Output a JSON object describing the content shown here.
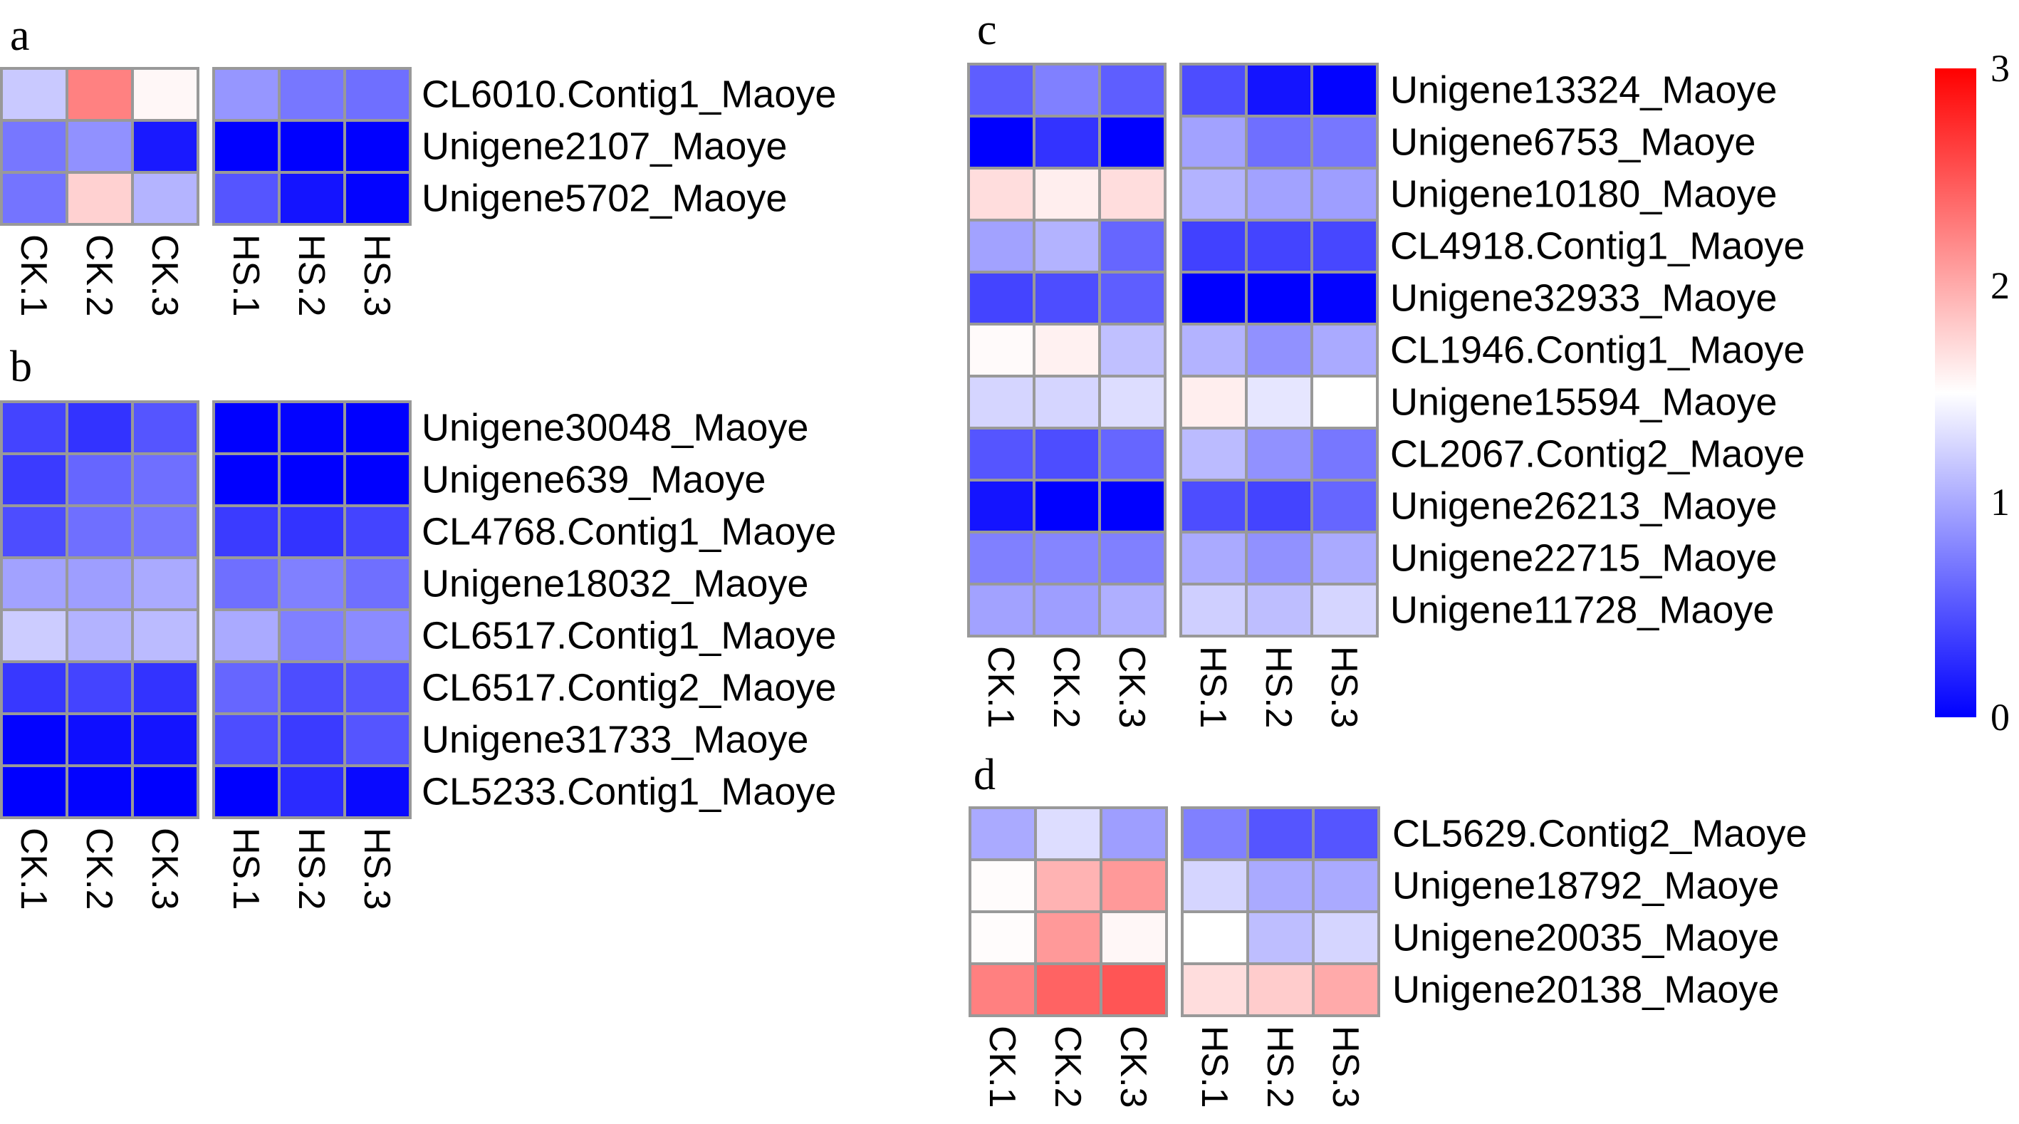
{
  "chart_data": [
    {
      "type": "heatmap",
      "panel": "a",
      "columns": [
        "CK.1",
        "CK.2",
        "CK.3",
        "HS.1",
        "HS.2",
        "HS.3"
      ],
      "rows": [
        "CL6010.Contig1_Maoye",
        "Unigene2107_Maoye",
        "Unigene5702_Maoye"
      ],
      "values": [
        [
          1.18,
          2.24,
          1.55,
          0.88,
          0.7,
          0.65
        ],
        [
          0.7,
          0.85,
          0.15,
          0.0,
          0.0,
          0.0
        ],
        [
          0.68,
          1.77,
          1.06,
          0.5,
          0.12,
          0.02
        ]
      ]
    },
    {
      "type": "heatmap",
      "panel": "b",
      "columns": [
        "CK.1",
        "CK.2",
        "CK.3",
        "HS.1",
        "HS.2",
        "HS.3"
      ],
      "rows": [
        "Unigene30048_Maoye",
        "Unigene639_Maoye",
        "CL4768.Contig1_Maoye",
        "Unigene18032_Maoye",
        "CL6517.Contig1_Maoye",
        "CL6517.Contig2_Maoye",
        "Unigene31733_Maoye",
        "CL5233.Contig1_Maoye"
      ],
      "values": [
        [
          0.4,
          0.3,
          0.5,
          0.0,
          0.02,
          0.0
        ],
        [
          0.35,
          0.6,
          0.65,
          0.0,
          0.0,
          0.0
        ],
        [
          0.45,
          0.65,
          0.7,
          0.35,
          0.3,
          0.4
        ],
        [
          0.95,
          0.93,
          1.0,
          0.65,
          0.75,
          0.65
        ],
        [
          1.2,
          1.05,
          1.1,
          1.0,
          0.75,
          0.82
        ],
        [
          0.33,
          0.4,
          0.3,
          0.6,
          0.45,
          0.5
        ],
        [
          0.02,
          0.08,
          0.12,
          0.45,
          0.35,
          0.5
        ],
        [
          0.0,
          0.02,
          0.0,
          0.0,
          0.25,
          0.05
        ]
      ]
    },
    {
      "type": "heatmap",
      "panel": "c",
      "columns": [
        "CK.1",
        "CK.2",
        "CK.3",
        "HS.1",
        "HS.2",
        "HS.3"
      ],
      "rows": [
        "Unigene13324_Maoye",
        "Unigene6753_Maoye",
        "Unigene10180_Maoye",
        "CL4918.Contig1_Maoye",
        "Unigene32933_Maoye",
        "CL1946.Contig1_Maoye",
        "Unigene15594_Maoye",
        "CL2067.Contig2_Maoye",
        "Unigene26213_Maoye",
        "Unigene22715_Maoye",
        "Unigene11728_Maoye"
      ],
      "values": [
        [
          0.55,
          0.75,
          0.55,
          0.45,
          0.12,
          0.02
        ],
        [
          0.0,
          0.3,
          0.0,
          0.95,
          0.65,
          0.7
        ],
        [
          1.7,
          1.6,
          1.7,
          1.05,
          0.95,
          0.93
        ],
        [
          0.95,
          1.05,
          0.6,
          0.38,
          0.4,
          0.42
        ],
        [
          0.4,
          0.45,
          0.55,
          0.0,
          0.0,
          0.02
        ],
        [
          1.53,
          1.58,
          1.13,
          1.05,
          0.85,
          1.0
        ],
        [
          1.25,
          1.25,
          1.3,
          1.6,
          1.35,
          1.5
        ],
        [
          0.5,
          0.45,
          0.6,
          1.1,
          0.85,
          0.7
        ],
        [
          0.12,
          0.0,
          0.0,
          0.45,
          0.4,
          0.6
        ],
        [
          0.75,
          0.78,
          0.75,
          1.0,
          0.85,
          1.0
        ],
        [
          0.95,
          0.93,
          1.03,
          1.22,
          1.12,
          1.25
        ]
      ]
    },
    {
      "type": "heatmap",
      "panel": "d",
      "columns": [
        "CK.1",
        "CK.2",
        "CK.3",
        "HS.1",
        "HS.2",
        "HS.3"
      ],
      "rows": [
        "CL5629.Contig2_Maoye",
        "Unigene18792_Maoye",
        "Unigene20035_Maoye",
        "Unigene20138_Maoye"
      ],
      "values": [
        [
          1.0,
          1.3,
          0.93,
          0.75,
          0.5,
          0.5
        ],
        [
          1.52,
          1.95,
          2.1,
          1.25,
          1.0,
          1.0
        ],
        [
          1.52,
          2.1,
          1.55,
          1.5,
          1.12,
          1.25
        ],
        [
          2.25,
          2.42,
          2.5,
          1.7,
          1.8,
          2.0
        ]
      ]
    }
  ],
  "colorbar": {
    "range": [
      0,
      3
    ],
    "ticks": [
      "3",
      "2",
      "1",
      "0"
    ],
    "colors": {
      "low": "#0000FF",
      "mid": "#FFFFFF",
      "high": "#FF0000"
    }
  },
  "cell_border_color": "#999999"
}
